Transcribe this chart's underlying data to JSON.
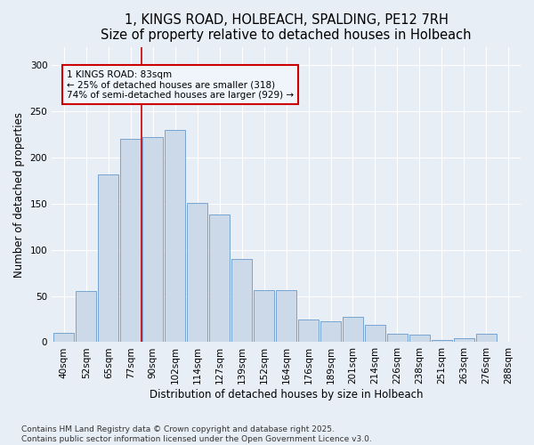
{
  "title": "1, KINGS ROAD, HOLBEACH, SPALDING, PE12 7RH",
  "subtitle": "Size of property relative to detached houses in Holbeach",
  "xlabel": "Distribution of detached houses by size in Holbeach",
  "ylabel": "Number of detached properties",
  "categories": [
    "40sqm",
    "52sqm",
    "65sqm",
    "77sqm",
    "90sqm",
    "102sqm",
    "114sqm",
    "127sqm",
    "139sqm",
    "152sqm",
    "164sqm",
    "176sqm",
    "189sqm",
    "201sqm",
    "214sqm",
    "226sqm",
    "238sqm",
    "251sqm",
    "263sqm",
    "276sqm",
    "288sqm"
  ],
  "values": [
    10,
    55,
    182,
    220,
    222,
    230,
    151,
    138,
    90,
    56,
    56,
    25,
    23,
    27,
    19,
    9,
    8,
    2,
    4,
    9,
    0
  ],
  "bar_color": "#ccd9e8",
  "bar_edgecolor": "#6699cc",
  "vline_x": 3.5,
  "vline_color": "#cc0000",
  "annotation_text": "1 KINGS ROAD: 83sqm\n← 25% of detached houses are smaller (318)\n74% of semi-detached houses are larger (929) →",
  "annotation_box_edgecolor": "#cc0000",
  "annotation_box_facecolor": "#f0f5fb",
  "ylim": [
    0,
    320
  ],
  "yticks": [
    0,
    50,
    100,
    150,
    200,
    250,
    300
  ],
  "background_color": "#e8eef5",
  "plot_bg_color": "#e8eef5",
  "grid_color": "#ffffff",
  "title_fontsize": 10.5,
  "axis_label_fontsize": 8.5,
  "tick_fontsize": 7.5,
  "footer_fontsize": 6.5,
  "footer": "Contains HM Land Registry data © Crown copyright and database right 2025.\nContains public sector information licensed under the Open Government Licence v3.0."
}
